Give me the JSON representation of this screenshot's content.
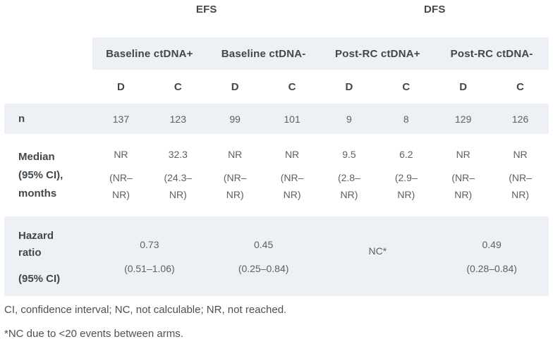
{
  "table": {
    "survival_headers": [
      {
        "label": "EFS"
      },
      {
        "label": "DFS"
      }
    ],
    "column_groups": [
      {
        "label": "Baseline ctDNA+"
      },
      {
        "label": "Baseline ctDNA-"
      },
      {
        "label": "Post-RC ctDNA+"
      },
      {
        "label": "Post-RC ctDNA-"
      }
    ],
    "arm_headers": [
      "D",
      "C",
      "D",
      "C",
      "D",
      "C",
      "D",
      "C"
    ],
    "rows": {
      "n": {
        "label": "n",
        "values": [
          "137",
          "123",
          "99",
          "101",
          "9",
          "8",
          "129",
          "126"
        ]
      },
      "median": {
        "label_lines": [
          "Median",
          "(95% CI),",
          "months"
        ],
        "cells": [
          {
            "value": "NR",
            "ci": "(NR–NR)"
          },
          {
            "value": "32.3",
            "ci": "(24.3–NR)"
          },
          {
            "value": "NR",
            "ci": "(NR–NR)"
          },
          {
            "value": "NR",
            "ci": "(NR–NR)"
          },
          {
            "value": "9.5",
            "ci": "(2.8–NR)"
          },
          {
            "value": "6.2",
            "ci": "(2.9–NR)"
          },
          {
            "value": "NR",
            "ci": "(NR–NR)"
          },
          {
            "value": "NR",
            "ci": "(NR–NR)"
          }
        ]
      },
      "hazard": {
        "label_line1": "Hazard ratio",
        "label_line2": "(95% CI)",
        "cells": [
          {
            "value": "0.73",
            "ci": "(0.51–1.06)"
          },
          {
            "value": "0.45",
            "ci": "(0.25–0.84)"
          },
          {
            "value": "NC*",
            "ci": ""
          },
          {
            "value": "0.49",
            "ci": "(0.28–0.84)"
          }
        ]
      }
    }
  },
  "footnotes": [
    "CI, confidence interval; NC, not calculable; NR, not reached.",
    "*NC due to <20 events between arms."
  ],
  "colors": {
    "band_bg": "#edf0f4",
    "header_text": "#40474d",
    "value_text": "#5a6167",
    "footnote_text": "#4b5156"
  },
  "chart_data": {
    "type": "table",
    "columns": [
      "",
      "EFS Baseline ctDNA+ D",
      "EFS Baseline ctDNA+ C",
      "EFS Baseline ctDNA- D",
      "EFS Baseline ctDNA- C",
      "DFS Post-RC ctDNA+ D",
      "DFS Post-RC ctDNA+ C",
      "DFS Post-RC ctDNA- D",
      "DFS Post-RC ctDNA- C"
    ],
    "rows": [
      [
        "n",
        "137",
        "123",
        "99",
        "101",
        "9",
        "8",
        "129",
        "126"
      ],
      [
        "Median (95% CI), months",
        "NR (NR–NR)",
        "32.3 (24.3–NR)",
        "NR (NR–NR)",
        "NR (NR–NR)",
        "9.5 (2.8–NR)",
        "6.2 (2.9–NR)",
        "NR (NR–NR)",
        "NR (NR–NR)"
      ],
      [
        "Hazard ratio (95% CI)",
        "0.73 (0.51–1.06)",
        "0.45 (0.25–0.84)",
        "NC*",
        "0.49 (0.28–0.84)"
      ]
    ]
  }
}
